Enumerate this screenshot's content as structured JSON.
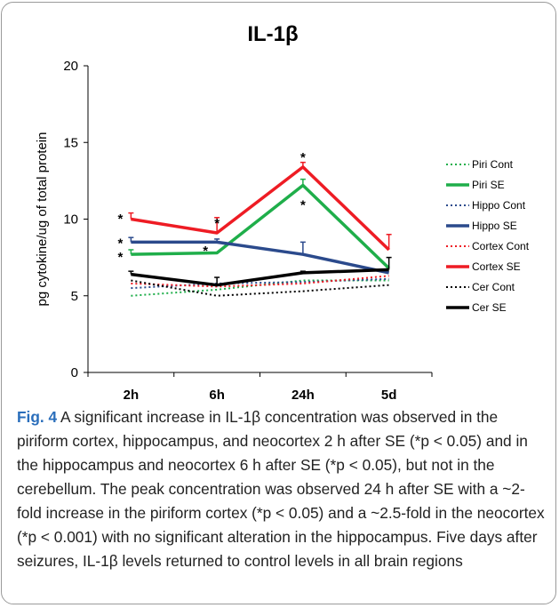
{
  "chart_data": {
    "type": "line",
    "title": "IL-1β",
    "ylabel": "pg cytokine/ug of total protein",
    "xlabel": "",
    "ylim": [
      0,
      20
    ],
    "yticks": [
      "0",
      "5",
      "10",
      "15",
      "20"
    ],
    "categories": [
      "2h",
      "6h",
      "24h",
      "5d"
    ],
    "series": [
      {
        "name": "Piri Cont",
        "values": [
          5.0,
          5.4,
          6.0,
          6.0
        ],
        "error": [
          null,
          null,
          null,
          null
        ],
        "color": "#1fae4a",
        "style": "dotted",
        "weight": "thin"
      },
      {
        "name": "Piri SE",
        "values": [
          7.7,
          7.8,
          12.2,
          6.8
        ],
        "error": [
          0.3,
          null,
          0.4,
          null
        ],
        "color": "#1fae4a",
        "style": "solid",
        "weight": "thick"
      },
      {
        "name": "Hippo Cont",
        "values": [
          5.5,
          5.8,
          5.9,
          6.1
        ],
        "error": [
          null,
          null,
          null,
          null
        ],
        "color": "#2b4a8c",
        "style": "dotted",
        "weight": "thin"
      },
      {
        "name": "Hippo SE",
        "values": [
          8.5,
          8.5,
          7.7,
          6.5
        ],
        "error": [
          0.3,
          0.2,
          0.8,
          null
        ],
        "color": "#2b4a8c",
        "style": "solid",
        "weight": "thick"
      },
      {
        "name": "Cortex Cont",
        "values": [
          5.8,
          5.6,
          5.8,
          6.3
        ],
        "error": [
          null,
          null,
          null,
          null
        ],
        "color": "#ee1c24",
        "style": "dotted",
        "weight": "thin"
      },
      {
        "name": "Cortex SE",
        "values": [
          10.0,
          9.1,
          13.4,
          8.0
        ],
        "error": [
          0.4,
          1.0,
          0.3,
          1.0
        ],
        "color": "#ee1c24",
        "style": "solid",
        "weight": "thick"
      },
      {
        "name": "Cer Cont",
        "values": [
          6.0,
          5.0,
          5.3,
          5.7
        ],
        "error": [
          null,
          null,
          null,
          null
        ],
        "color": "#000000",
        "style": "dotted",
        "weight": "thin"
      },
      {
        "name": "Cer SE",
        "values": [
          6.4,
          5.7,
          6.5,
          6.7
        ],
        "error": [
          0.2,
          0.5,
          0.1,
          0.8
        ],
        "color": "#000000",
        "style": "solid",
        "weight": "thick"
      }
    ],
    "annotations": [
      {
        "text": "*",
        "category": "2h",
        "y": 10.1
      },
      {
        "text": "*",
        "category": "2h",
        "y": 8.5
      },
      {
        "text": "*",
        "category": "2h",
        "y": 7.6
      },
      {
        "text": "*",
        "category": "6h",
        "y": 9.8
      },
      {
        "text": "*",
        "category": "6h",
        "y": 8.0
      },
      {
        "text": "*",
        "category": "24h",
        "y": 14.1
      },
      {
        "text": "*",
        "category": "24h",
        "y": 11.0
      }
    ],
    "legend_position": "right",
    "grid": false
  },
  "caption": {
    "label": "Fig. 4",
    "text": " A significant increase in IL-1β concentration was observed in the piriform cortex, hippocampus, and neocortex 2 h after SE (*p < 0.05) and in the hippocampus and neocortex 6 h after SE (*p < 0.05), but not in the cerebellum. The peak concentration was observed 24 h after SE with a ~2-fold increase in the piriform cortex (*p < 0.05) and a ~2.5-fold in the neocortex (*p < 0.001) with no significant alteration in the hippocampus. Five days after seizures, IL-1β levels returned to control levels in all brain regions"
  }
}
